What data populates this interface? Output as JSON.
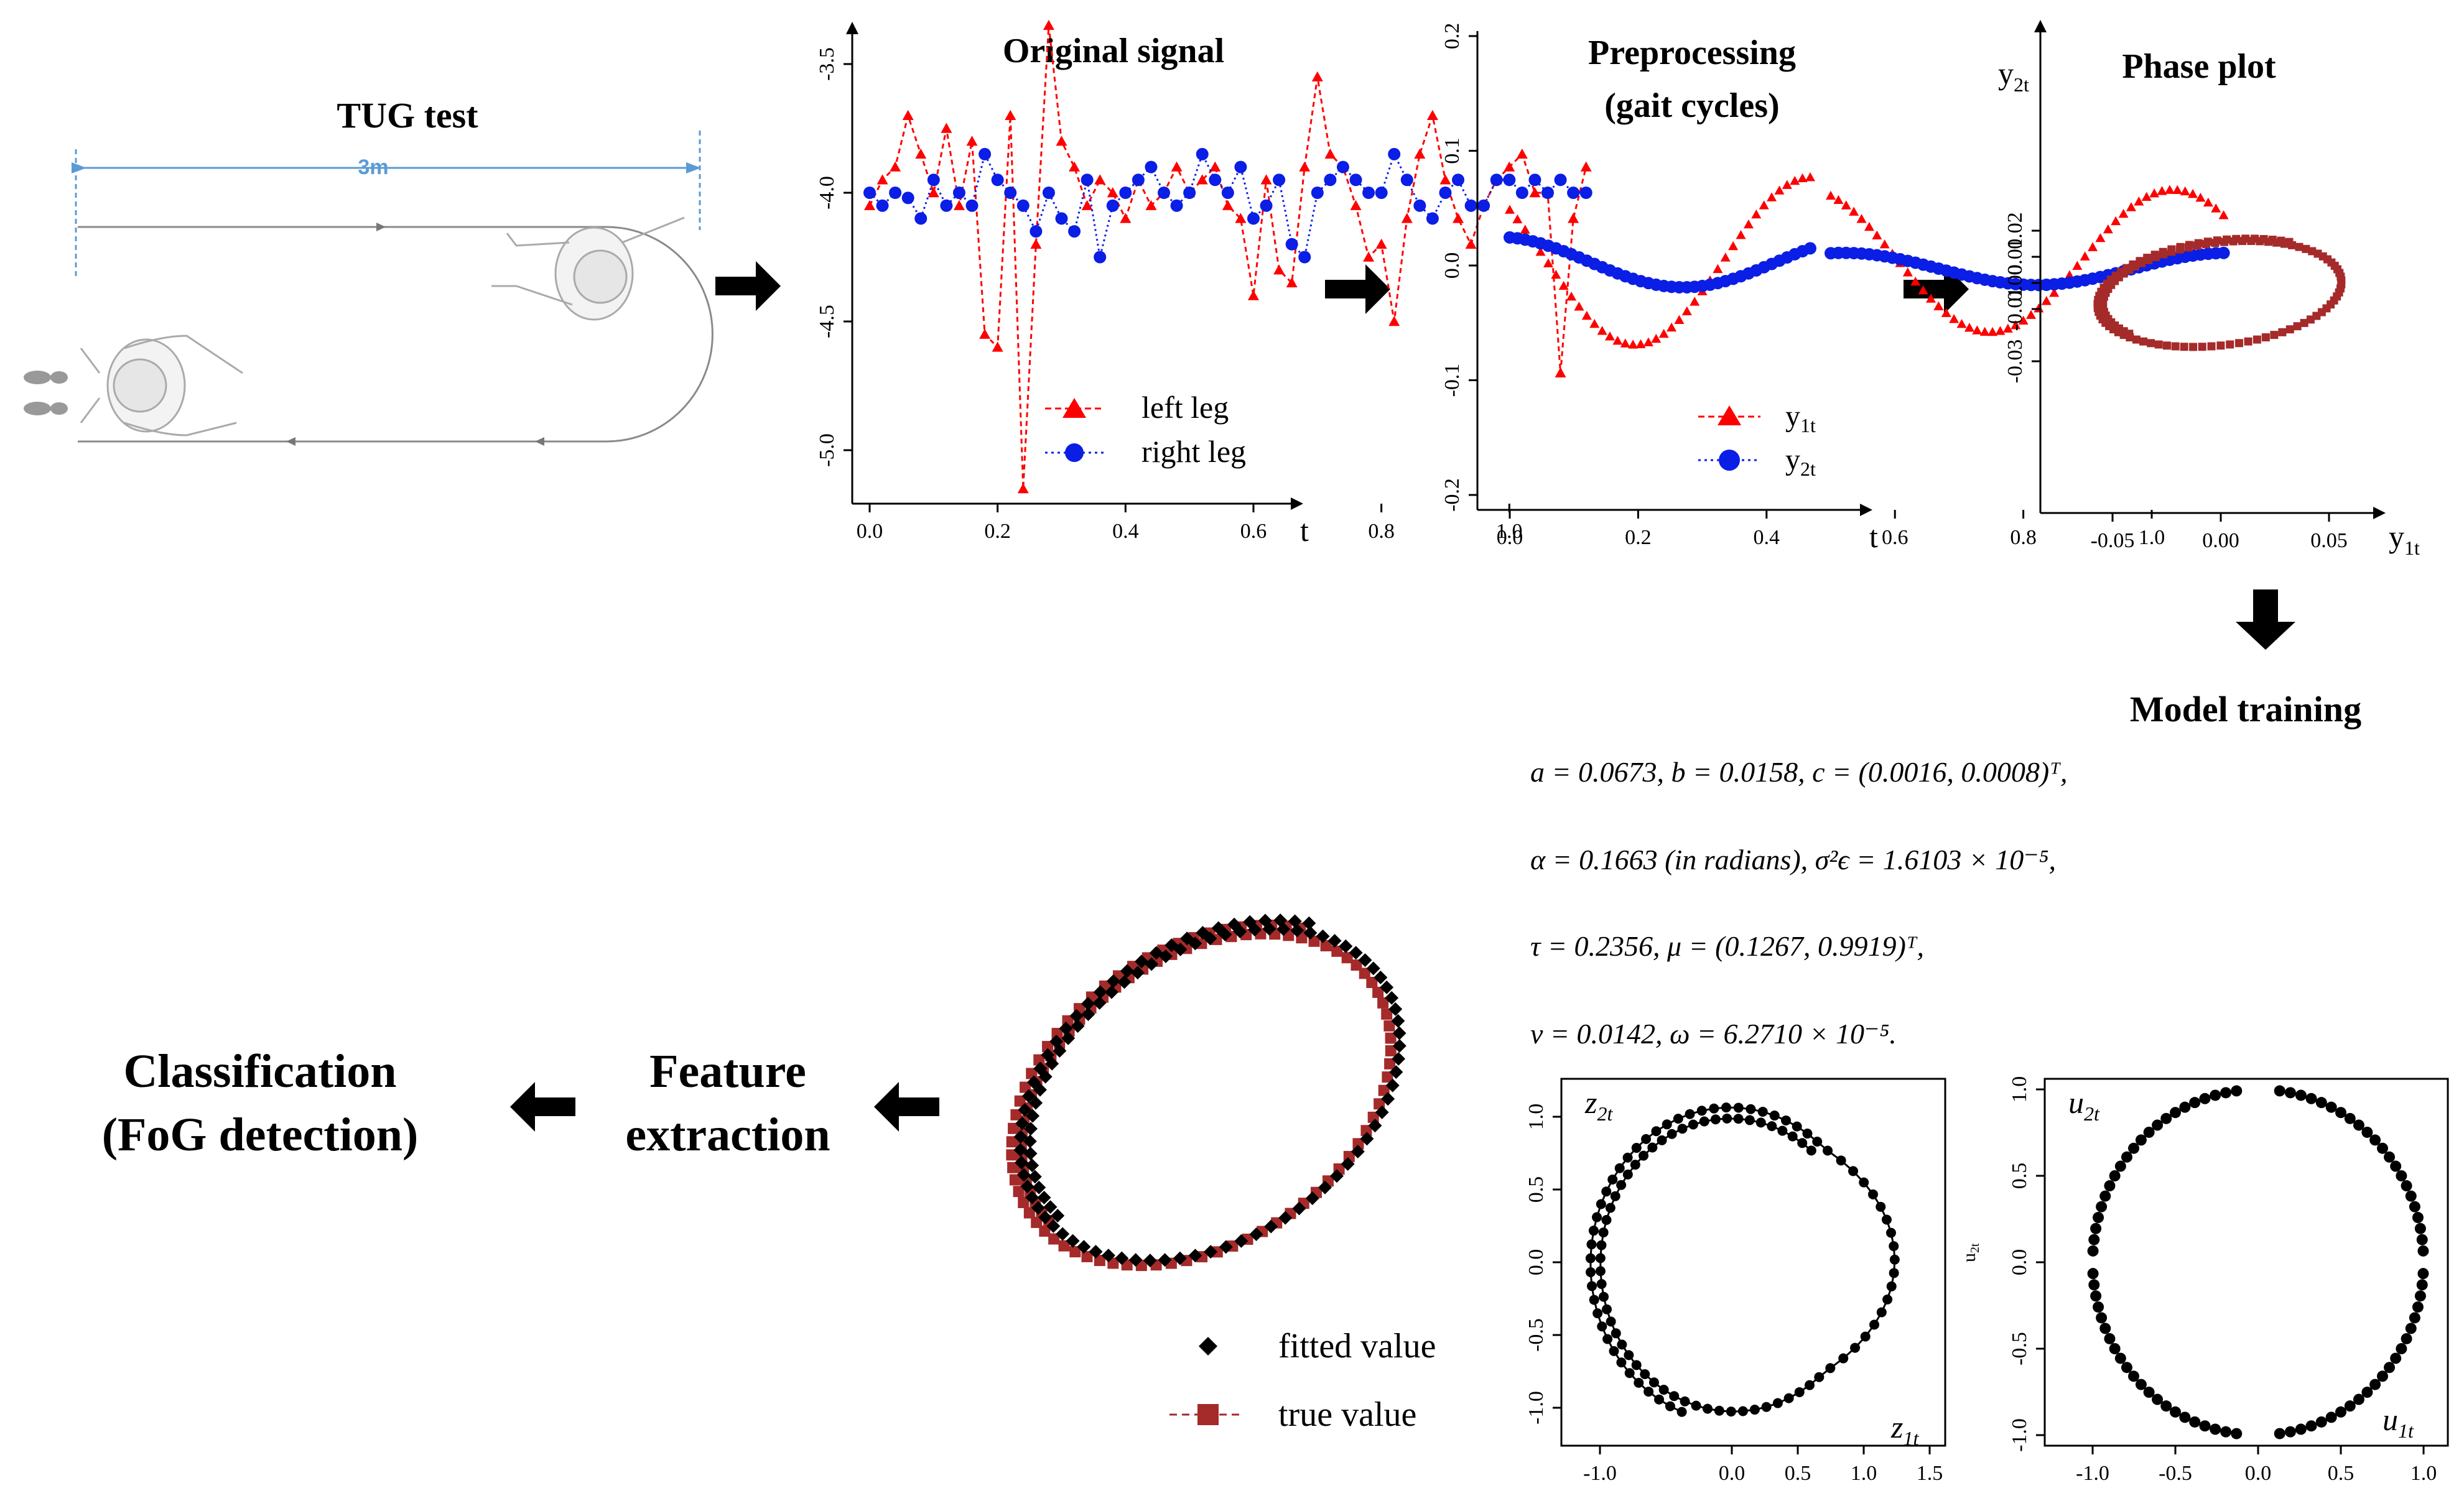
{
  "tug": {
    "title": "TUG test",
    "distance": "3m"
  },
  "panels": {
    "original": {
      "title": "Original signal",
      "xlabel": "t",
      "yticks": [
        "-3.5",
        "-4.0",
        "-4.5",
        "-5.0"
      ],
      "xticks": [
        "0.0",
        "0.2",
        "0.4",
        "0.6",
        "0.8",
        "1.0"
      ],
      "legend": [
        "left leg",
        "right leg"
      ]
    },
    "preprocessing": {
      "title_line1": "Preprocessing",
      "title_line2": "(gait cycles)",
      "xlabel": "t",
      "yticks": [
        "0.2",
        "0.1",
        "0.0",
        "-0.1",
        "-0.2"
      ],
      "xticks": [
        "0.0",
        "0.2",
        "0.4",
        "0.6",
        "0.8",
        "1.0"
      ],
      "legend": [
        "y1t",
        "y2t"
      ]
    },
    "phase": {
      "title": "Phase plot",
      "xlabel": "y1t",
      "ylabel": "y2t",
      "yticks": [
        "0.02",
        "0.01",
        "0.00",
        "-0.01",
        "-0.03"
      ],
      "xticks": [
        "-0.05",
        "0.00",
        "0.05"
      ]
    },
    "z_plot": {
      "xlabel": "z1t",
      "ylabel": "z2t",
      "yticks": [
        "1.0",
        "0.5",
        "0.0",
        "-0.5",
        "-1.0"
      ],
      "xticks": [
        "-1.0",
        "0.0",
        "0.5",
        "1.0",
        "1.5"
      ]
    },
    "u_plot": {
      "xlabel": "u1t",
      "ylabel": "u2t",
      "side_label": "u2t",
      "yticks": [
        "1.0",
        "0.5",
        "0.0",
        "-0.5",
        "-1.0"
      ],
      "xticks": [
        "-1.0",
        "-0.5",
        "0.0",
        "0.5",
        "1.0"
      ]
    },
    "fit": {
      "legend": [
        "fitted value",
        "true value"
      ]
    }
  },
  "steps": {
    "model_training": "Model training",
    "feature_line1": "Feature",
    "feature_line2": "extraction",
    "class_line1": "Classification",
    "class_line2": "(FoG detection)"
  },
  "params": {
    "line1": "a = 0.0673, b = 0.0158, c = (0.0016, 0.0008)ᵀ,",
    "line2": "α = 0.1663 (in radians), σ²ϵ = 1.6103 × 10⁻⁵,",
    "line3": "τ = 0.2356, μ = (0.1267, 0.9919)ᵀ,",
    "line4": "ν = 0.0142, ω = 6.2710 × 10⁻⁵."
  },
  "colors": {
    "left_leg": "#ff0000",
    "right_leg": "#0a1ee6",
    "true_value": "#a52a2a",
    "fitted": "#000000",
    "tug_line": "#5b9bd5"
  }
}
